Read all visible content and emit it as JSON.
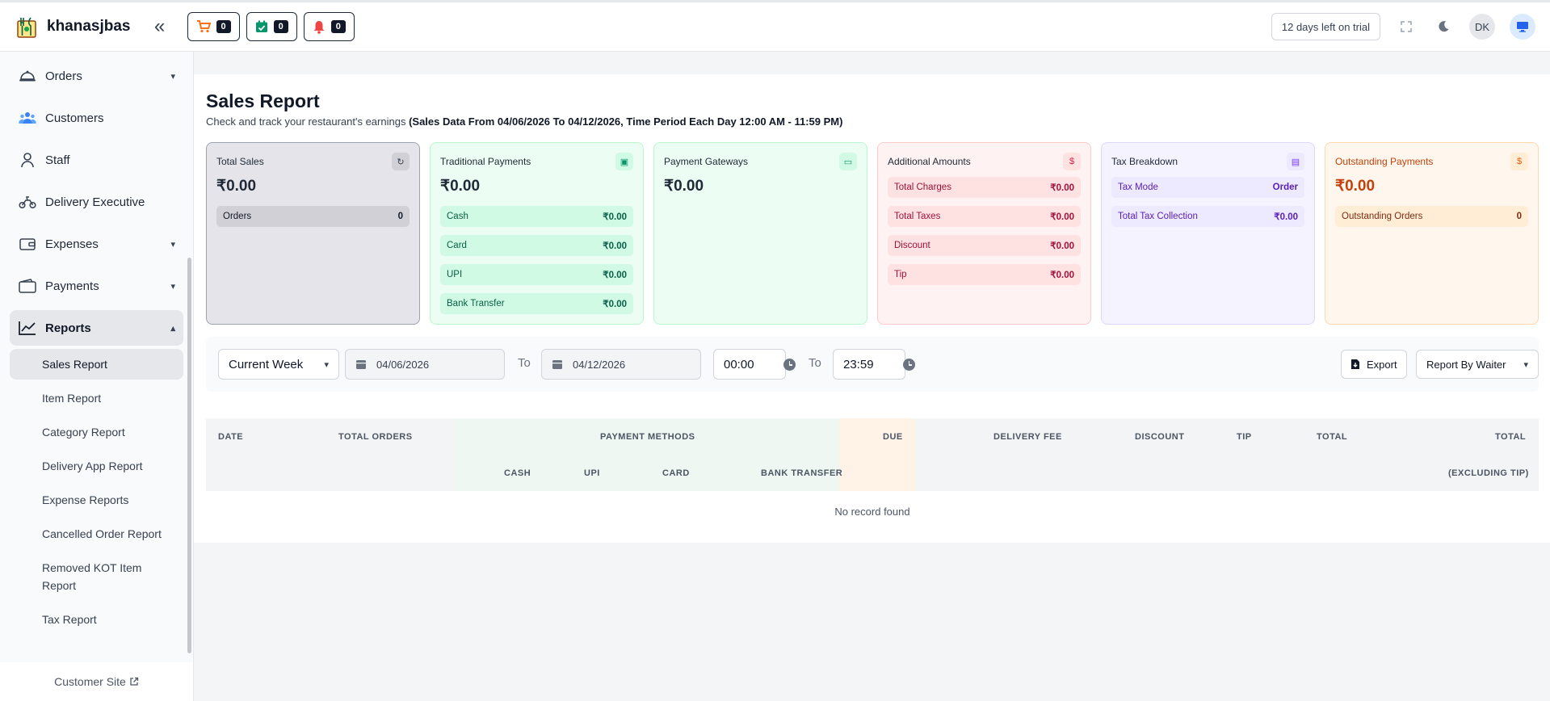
{
  "brand": {
    "name": "khanasjbas"
  },
  "quick_actions": [
    {
      "icon": "cart-icon",
      "count": "0",
      "color": "#f97316"
    },
    {
      "icon": "calendar-check-icon",
      "count": "0",
      "color": "#059669"
    },
    {
      "icon": "bell-icon",
      "count": "0",
      "color": "#ef4444"
    }
  ],
  "topbar": {
    "trial": "12 days left on trial",
    "avatar": "DK"
  },
  "sidebar": {
    "items": [
      {
        "label": "Orders",
        "icon": "orders-cloche-icon",
        "chevron": "down"
      },
      {
        "label": "Customers",
        "icon": "users-icon"
      },
      {
        "label": "Staff",
        "icon": "staff-icon"
      },
      {
        "label": "Delivery Executive",
        "icon": "delivery-bike-icon"
      },
      {
        "label": "Expenses",
        "icon": "wallet-icon",
        "chevron": "down"
      },
      {
        "label": "Payments",
        "icon": "payments-icon",
        "chevron": "down"
      },
      {
        "label": "Reports",
        "icon": "chart-line-icon",
        "chevron": "up"
      }
    ],
    "reports_sub": [
      "Sales Report",
      "Item Report",
      "Category Report",
      "Delivery App Report",
      "Expense Reports",
      "Cancelled Order Report",
      "Removed KOT Item Report",
      "Tax Report"
    ],
    "customer_site": "Customer Site"
  },
  "page": {
    "title": "Sales Report",
    "subtitle": "Check and track your restaurant's earnings",
    "subtitle_bold": "(Sales Data From 04/06/2026 To 04/12/2026, Time Period Each Day 12:00 AM - 11:59 PM)"
  },
  "cards": {
    "total": {
      "title": "Total Sales",
      "amount": "₹0.00",
      "rows": [
        {
          "label": "Orders",
          "value": "0"
        }
      ]
    },
    "traditional": {
      "title": "Traditional Payments",
      "amount": "₹0.00",
      "rows": [
        {
          "label": "Cash",
          "value": "₹0.00"
        },
        {
          "label": "Card",
          "value": "₹0.00"
        },
        {
          "label": "UPI",
          "value": "₹0.00"
        },
        {
          "label": "Bank Transfer",
          "value": "₹0.00"
        }
      ]
    },
    "gateways": {
      "title": "Payment Gateways",
      "amount": "₹0.00"
    },
    "additional": {
      "title": "Additional Amounts",
      "rows": [
        {
          "label": "Total Charges",
          "value": "₹0.00"
        },
        {
          "label": "Total Taxes",
          "value": "₹0.00"
        },
        {
          "label": "Discount",
          "value": "₹0.00"
        },
        {
          "label": "Tip",
          "value": "₹0.00"
        }
      ]
    },
    "tax": {
      "title": "Tax Breakdown",
      "rows": [
        {
          "label": "Tax Mode",
          "value": "Order"
        },
        {
          "label": "Total Tax Collection",
          "value": "₹0.00"
        }
      ]
    },
    "outstanding": {
      "title": "Outstanding Payments",
      "amount": "₹0.00",
      "rows": [
        {
          "label": "Outstanding Orders",
          "value": "0"
        }
      ]
    }
  },
  "filters": {
    "period": "Current Week",
    "start_date": "04/06/2026",
    "end_date": "04/12/2026",
    "to_label": "To",
    "start_time": "00:00",
    "end_time": "23:59",
    "export": "Export",
    "report_by": "Report By Waiter"
  },
  "table": {
    "headers": {
      "date": "Date",
      "total_orders": "Total Orders",
      "payment_methods": "Payment Methods",
      "due": "Due",
      "delivery_fee": "Delivery Fee",
      "discount": "Discount",
      "tip": "Tip",
      "total": "Total",
      "total_excl": "Total",
      "total_excl_sub": "(Excluding Tip)",
      "cash": "Cash",
      "upi": "UPI",
      "card": "Card",
      "bank_transfer": "Bank Transfer"
    },
    "empty": "No record found"
  }
}
